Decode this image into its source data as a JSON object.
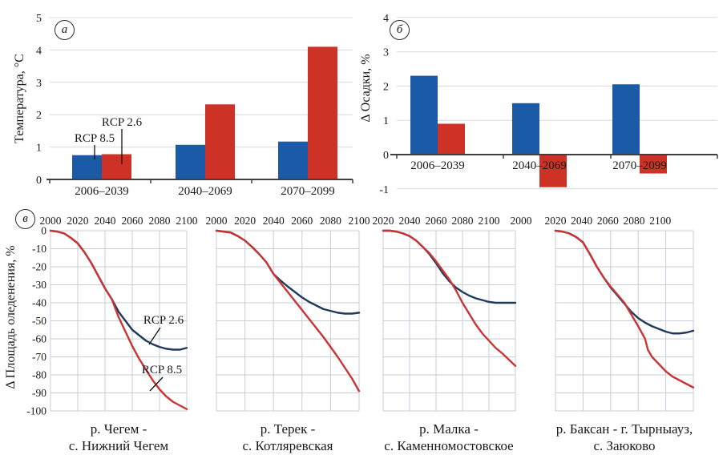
{
  "panels": {
    "a": {
      "letter": "а"
    },
    "b": {
      "letter": "б"
    },
    "v": {
      "letter": "в",
      "ylabel": "Δ Площадь оледенения, %",
      "yticks": [
        0,
        -10,
        -20,
        -30,
        -40,
        -50,
        -60,
        -70,
        -80,
        -90,
        -100
      ]
    }
  },
  "colors": {
    "bar_blue": "#1a5aa6",
    "bar_red": "#ce3227",
    "line_blue": "#1f3a5b",
    "line_red": "#c93534",
    "grid_bar": "#d9d9d9",
    "grid_line": "#c7ced6",
    "axis": "#3f3f3f",
    "annotation": "#111111"
  },
  "chart_data": [
    {
      "id": "temperature",
      "type": "bar",
      "panel_letter": "а",
      "ylabel": "Температура, °C",
      "categories": [
        "2006–2039",
        "2040–2069",
        "2070–2099"
      ],
      "series": [
        {
          "name": "RCP 8.5",
          "color_key": "bar_blue",
          "values": [
            0.75,
            1.07,
            1.17
          ]
        },
        {
          "name": "RCP 2.6",
          "color_key": "bar_red",
          "values": [
            0.78,
            2.32,
            4.1
          ]
        }
      ],
      "ylim": [
        0,
        5
      ],
      "yticks": [
        0,
        1,
        2,
        3,
        4,
        5
      ],
      "grid": true,
      "annotations": [
        {
          "text": "RCP 8.5",
          "x": 118,
          "y": 177,
          "line": [
            118,
            181,
            118,
            199
          ]
        },
        {
          "text": "RCP 2.6",
          "x": 152,
          "y": 157,
          "line": [
            152,
            161,
            152,
            205
          ]
        }
      ]
    },
    {
      "id": "precipitation",
      "type": "bar",
      "panel_letter": "б",
      "ylabel": "Δ Осадки, %",
      "categories": [
        "2006–2039",
        "2040–2069",
        "2070–2099"
      ],
      "series": [
        {
          "name": "blue",
          "color_key": "bar_blue",
          "values": [
            2.3,
            1.5,
            2.05
          ]
        },
        {
          "name": "red",
          "color_key": "bar_red",
          "values": [
            0.9,
            -0.95,
            -0.55
          ]
        }
      ],
      "ylim": [
        -1,
        4
      ],
      "yticks": [
        -1,
        0,
        1,
        2,
        3,
        4
      ],
      "grid": true,
      "annotations": []
    },
    {
      "id": "chegem",
      "type": "line",
      "panel_letter": "в",
      "title_lines": [
        "р. Чегем -",
        "с. Нижний Чегем"
      ],
      "ylabel": "Δ Площадь оледенения, %",
      "ylim": [
        -100,
        0
      ],
      "x_labels": [
        {
          "t": "2000",
          "f": 0
        },
        {
          "t": "2020",
          "f": 0.2
        },
        {
          "t": "2040",
          "f": 0.4
        },
        {
          "t": "2060",
          "f": 0.6
        },
        {
          "t": "2080",
          "f": 0.8
        },
        {
          "t": "2100",
          "f": 1
        }
      ],
      "series": [
        {
          "name": "RCP 2.6",
          "color_key": "line_blue",
          "points": [
            [
              0,
              0
            ],
            [
              0.05,
              -0.5
            ],
            [
              0.1,
              -1.5
            ],
            [
              0.15,
              -4
            ],
            [
              0.2,
              -7
            ],
            [
              0.25,
              -12
            ],
            [
              0.3,
              -18
            ],
            [
              0.35,
              -25
            ],
            [
              0.4,
              -32
            ],
            [
              0.45,
              -38
            ],
            [
              0.5,
              -45
            ],
            [
              0.55,
              -50
            ],
            [
              0.6,
              -55
            ],
            [
              0.65,
              -58
            ],
            [
              0.7,
              -61
            ],
            [
              0.75,
              -63
            ],
            [
              0.8,
              -64.5
            ],
            [
              0.85,
              -65.5
            ],
            [
              0.9,
              -66
            ],
            [
              0.95,
              -66
            ],
            [
              1,
              -65
            ]
          ]
        },
        {
          "name": "RCP 8.5",
          "color_key": "line_red",
          "points": [
            [
              0,
              0
            ],
            [
              0.05,
              -0.5
            ],
            [
              0.1,
              -1.5
            ],
            [
              0.15,
              -4
            ],
            [
              0.2,
              -7
            ],
            [
              0.25,
              -12
            ],
            [
              0.3,
              -18
            ],
            [
              0.35,
              -25
            ],
            [
              0.4,
              -32
            ],
            [
              0.45,
              -38
            ],
            [
              0.5,
              -48
            ],
            [
              0.55,
              -56
            ],
            [
              0.6,
              -64
            ],
            [
              0.65,
              -71
            ],
            [
              0.7,
              -77
            ],
            [
              0.75,
              -83
            ],
            [
              0.8,
              -88
            ],
            [
              0.85,
              -92
            ],
            [
              0.9,
              -95
            ],
            [
              0.95,
              -97
            ],
            [
              1,
              -99
            ]
          ]
        }
      ],
      "annotations": [
        {
          "text": "RCP 2.6",
          "x": 141,
          "y": 116,
          "line": [
            137,
            121,
            123,
            142
          ]
        },
        {
          "text": "RCP 8.5",
          "x": 139,
          "y": 178,
          "line": [
            140,
            183,
            124,
            200
          ]
        }
      ]
    },
    {
      "id": "terek",
      "type": "line",
      "panel_letter": "в",
      "title_lines": [
        "р. Терек -",
        "с. Котляревская"
      ],
      "ylim": [
        -100,
        0
      ],
      "x_labels": [
        {
          "t": "2000",
          "f": 0
        },
        {
          "t": "2020",
          "f": 0.2
        },
        {
          "t": "2040",
          "f": 0.4
        },
        {
          "t": "2060",
          "f": 0.6
        },
        {
          "t": "2080",
          "f": 0.8
        },
        {
          "t": "2100",
          "f": 1
        }
      ],
      "series": [
        {
          "name": "RCP 2.6",
          "color_key": "line_blue",
          "points": [
            [
              0,
              0
            ],
            [
              0.05,
              -0.5
            ],
            [
              0.1,
              -1
            ],
            [
              0.15,
              -3
            ],
            [
              0.2,
              -5.5
            ],
            [
              0.25,
              -9
            ],
            [
              0.3,
              -13
            ],
            [
              0.35,
              -17.5
            ],
            [
              0.4,
              -24
            ],
            [
              0.44,
              -27
            ],
            [
              0.5,
              -31
            ],
            [
              0.55,
              -34
            ],
            [
              0.6,
              -37
            ],
            [
              0.65,
              -39.5
            ],
            [
              0.7,
              -41.5
            ],
            [
              0.75,
              -43.5
            ],
            [
              0.8,
              -44.5
            ],
            [
              0.85,
              -45.5
            ],
            [
              0.9,
              -46
            ],
            [
              0.95,
              -46
            ],
            [
              1,
              -45.5
            ]
          ]
        },
        {
          "name": "RCP 8.5",
          "color_key": "line_red",
          "points": [
            [
              0,
              0
            ],
            [
              0.05,
              -0.5
            ],
            [
              0.1,
              -1
            ],
            [
              0.15,
              -3
            ],
            [
              0.2,
              -5.5
            ],
            [
              0.25,
              -9
            ],
            [
              0.3,
              -13
            ],
            [
              0.35,
              -17.5
            ],
            [
              0.4,
              -24
            ],
            [
              0.45,
              -29
            ],
            [
              0.5,
              -34
            ],
            [
              0.55,
              -39
            ],
            [
              0.6,
              -44
            ],
            [
              0.65,
              -49
            ],
            [
              0.7,
              -54
            ],
            [
              0.75,
              -59
            ],
            [
              0.8,
              -64.5
            ],
            [
              0.85,
              -70
            ],
            [
              0.9,
              -76
            ],
            [
              0.95,
              -82
            ],
            [
              1,
              -89
            ]
          ]
        }
      ],
      "annotations": []
    },
    {
      "id": "malka",
      "type": "line",
      "panel_letter": "в",
      "title_lines": [
        "р. Малка -",
        "с. Каменномостовское"
      ],
      "ylim": [
        -100,
        0
      ],
      "x_labels": [
        {
          "t": "2020",
          "f": 0
        },
        {
          "t": "2040",
          "f": 0.2
        },
        {
          "t": "2060",
          "f": 0.4
        },
        {
          "t": "2080",
          "f": 0.6
        },
        {
          "t": "2100",
          "f": 0.8
        }
      ],
      "series": [
        {
          "name": "RCP 2.6",
          "color_key": "line_blue",
          "points": [
            [
              0,
              0
            ],
            [
              0.05,
              0
            ],
            [
              0.1,
              -0.5
            ],
            [
              0.15,
              -1.5
            ],
            [
              0.2,
              -3
            ],
            [
              0.25,
              -5.5
            ],
            [
              0.3,
              -9
            ],
            [
              0.35,
              -13
            ],
            [
              0.4,
              -18
            ],
            [
              0.45,
              -23.5
            ],
            [
              0.5,
              -28
            ],
            [
              0.55,
              -31.5
            ],
            [
              0.6,
              -34
            ],
            [
              0.65,
              -36
            ],
            [
              0.7,
              -37.5
            ],
            [
              0.75,
              -38.5
            ],
            [
              0.8,
              -39.5
            ],
            [
              0.85,
              -40
            ],
            [
              0.9,
              -40
            ],
            [
              0.95,
              -40
            ],
            [
              1,
              -40
            ]
          ]
        },
        {
          "name": "RCP 8.5",
          "color_key": "line_red",
          "points": [
            [
              0,
              0
            ],
            [
              0.05,
              0
            ],
            [
              0.1,
              -0.5
            ],
            [
              0.15,
              -1.5
            ],
            [
              0.2,
              -3
            ],
            [
              0.25,
              -5.5
            ],
            [
              0.3,
              -9
            ],
            [
              0.35,
              -12.5
            ],
            [
              0.4,
              -17
            ],
            [
              0.45,
              -22
            ],
            [
              0.5,
              -27
            ],
            [
              0.55,
              -33
            ],
            [
              0.6,
              -40
            ],
            [
              0.65,
              -46
            ],
            [
              0.7,
              -52
            ],
            [
              0.75,
              -57
            ],
            [
              0.8,
              -61
            ],
            [
              0.85,
              -65
            ],
            [
              0.9,
              -68
            ],
            [
              0.95,
              -71.5
            ],
            [
              1,
              -75
            ]
          ]
        }
      ],
      "annotations": []
    },
    {
      "id": "baksan",
      "type": "line",
      "panel_letter": "в",
      "title_lines": [
        "р. Баксан - г. Тырныауз,",
        "с. Заюково"
      ],
      "ylim": [
        -100,
        0
      ],
      "x_labels": [
        {
          "t": "2000",
          "f": -0.25
        },
        {
          "t": "2020",
          "f": 0
        },
        {
          "t": "2040",
          "f": 0.19
        },
        {
          "t": "2060",
          "f": 0.38
        },
        {
          "t": "2080",
          "f": 0.57
        },
        {
          "t": "2100",
          "f": 0.76
        }
      ],
      "series": [
        {
          "name": "RCP 2.6",
          "color_key": "line_blue",
          "points": [
            [
              0,
              0
            ],
            [
              0.05,
              -0.5
            ],
            [
              0.1,
              -1.5
            ],
            [
              0.15,
              -3.5
            ],
            [
              0.2,
              -6.5
            ],
            [
              0.25,
              -13
            ],
            [
              0.3,
              -20
            ],
            [
              0.35,
              -26
            ],
            [
              0.4,
              -31.5
            ],
            [
              0.45,
              -36
            ],
            [
              0.5,
              -40.5
            ],
            [
              0.55,
              -45
            ],
            [
              0.6,
              -48.5
            ],
            [
              0.65,
              -51
            ],
            [
              0.7,
              -53
            ],
            [
              0.75,
              -54.5
            ],
            [
              0.8,
              -56
            ],
            [
              0.85,
              -57
            ],
            [
              0.9,
              -57
            ],
            [
              0.95,
              -56.5
            ],
            [
              1,
              -55.5
            ]
          ]
        },
        {
          "name": "RCP 8.5",
          "color_key": "line_red",
          "points": [
            [
              0,
              0
            ],
            [
              0.05,
              -0.5
            ],
            [
              0.1,
              -1.5
            ],
            [
              0.15,
              -3.5
            ],
            [
              0.2,
              -6.5
            ],
            [
              0.25,
              -13
            ],
            [
              0.3,
              -20
            ],
            [
              0.35,
              -26
            ],
            [
              0.4,
              -31
            ],
            [
              0.45,
              -35.5
            ],
            [
              0.5,
              -40
            ],
            [
              0.55,
              -46.5
            ],
            [
              0.6,
              -53
            ],
            [
              0.65,
              -60
            ],
            [
              0.67,
              -66
            ],
            [
              0.7,
              -70
            ],
            [
              0.75,
              -74
            ],
            [
              0.8,
              -78
            ],
            [
              0.85,
              -81
            ],
            [
              0.9,
              -83
            ],
            [
              0.95,
              -85
            ],
            [
              1,
              -87
            ]
          ]
        }
      ],
      "annotations": []
    }
  ]
}
